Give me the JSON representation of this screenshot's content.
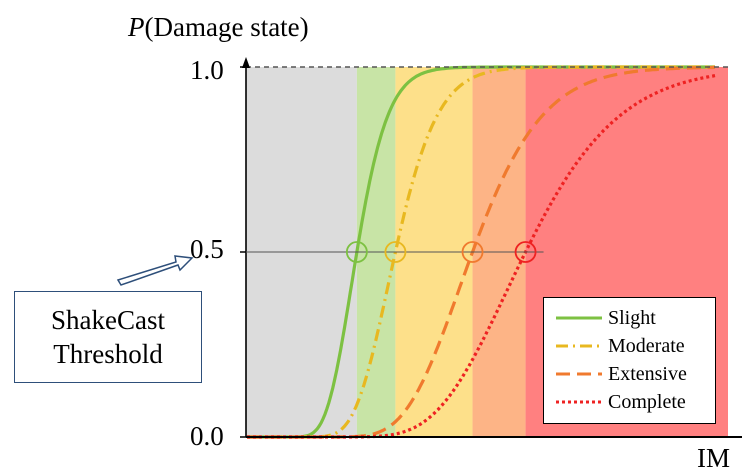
{
  "chart_data": {
    "type": "line",
    "ylabel_italic": "P",
    "ylabel_rest": "(Damage state)",
    "xlabel": "IM",
    "ylim": [
      0,
      1
    ],
    "yticks": [
      "0.0",
      "0.5",
      "1.0"
    ],
    "x_domain": [
      0,
      10
    ],
    "series": [
      {
        "name": "Slight",
        "median": 2.3,
        "beta": 0.22,
        "color": "#7dc142",
        "dash": "solid"
      },
      {
        "name": "Moderate",
        "median": 3.1,
        "beta": 0.22,
        "color": "#e8b820",
        "dash": "dashdot"
      },
      {
        "name": "Extensive",
        "median": 4.7,
        "beta": 0.24,
        "color": "#f07a2e",
        "dash": "dashed"
      },
      {
        "name": "Complete",
        "median": 5.8,
        "beta": 0.26,
        "color": "#ee2222",
        "dash": "dotted"
      }
    ],
    "bands": [
      {
        "from": 0,
        "to": 2.3,
        "color": "#dcdcdc"
      },
      {
        "from": 2.3,
        "to": 3.1,
        "color": "#c8e4a6"
      },
      {
        "from": 3.1,
        "to": 4.7,
        "color": "#fde08a"
      },
      {
        "from": 4.7,
        "to": 5.8,
        "color": "#fdb486"
      },
      {
        "from": 5.8,
        "to": 10,
        "color": "#ff8080"
      }
    ],
    "threshold_y": 0.5,
    "callout_lines": [
      "ShakeCast",
      "Threshold"
    ]
  }
}
